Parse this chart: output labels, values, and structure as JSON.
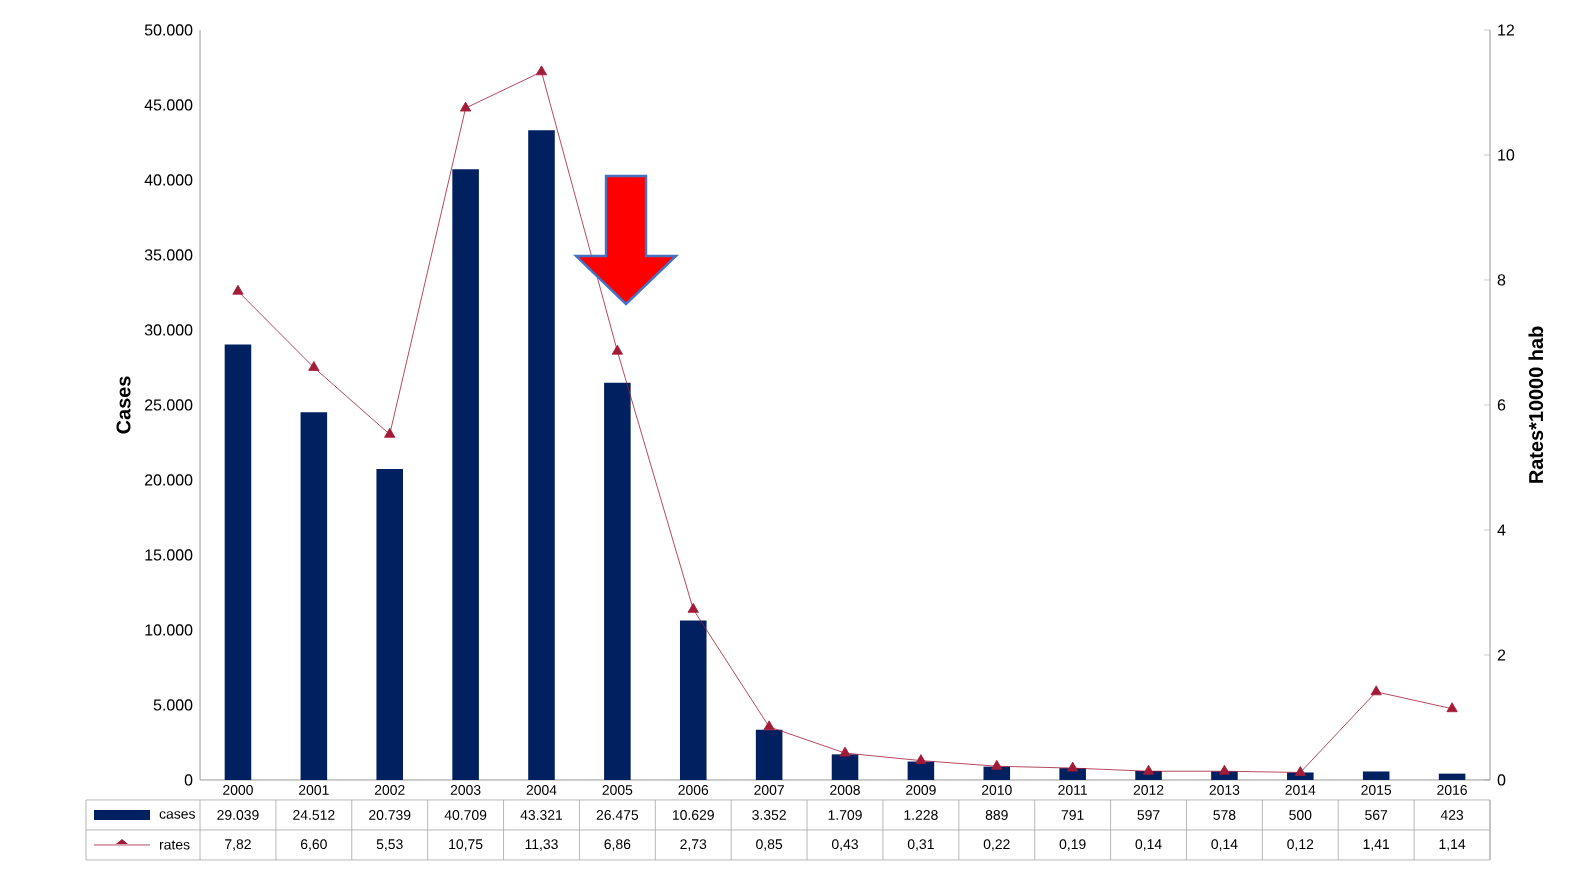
{
  "chart_data": {
    "type": "bar",
    "ylabel": "Cases",
    "y2label": "Rates*10000 hab",
    "categories": [
      "2000",
      "2001",
      "2002",
      "2003",
      "2004",
      "2005",
      "2006",
      "2007",
      "2008",
      "2009",
      "2010",
      "2011",
      "2012",
      "2013",
      "2014",
      "2015",
      "2016"
    ],
    "series": [
      {
        "name": "cases",
        "color": "#002060",
        "values": [
          29039,
          24512,
          20739,
          40709,
          43321,
          26475,
          10629,
          3352,
          1709,
          1228,
          889,
          791,
          597,
          578,
          500,
          567,
          423
        ],
        "value_labels": [
          "29.039",
          "24.512",
          "20.739",
          "40.709",
          "43.321",
          "26.475",
          "10.629",
          "3.352",
          "1.709",
          "1.228",
          "889",
          "791",
          "597",
          "578",
          "500",
          "567",
          "423"
        ]
      },
      {
        "name": "rates",
        "type": "line",
        "axis": "y2",
        "color": "#a31c37",
        "marker": "triangle",
        "values": [
          7.82,
          6.6,
          5.53,
          10.75,
          11.33,
          6.86,
          2.73,
          0.85,
          0.43,
          0.31,
          0.22,
          0.19,
          0.14,
          0.14,
          0.12,
          1.41,
          1.14
        ],
        "value_labels": [
          "7,82",
          "6,60",
          "5,53",
          "10,75",
          "11,33",
          "6,86",
          "2,73",
          "0,85",
          "0,43",
          "0,31",
          "0,22",
          "0,19",
          "0,14",
          "0,14",
          "0,12",
          "1,41",
          "1,14"
        ]
      }
    ],
    "ylim": [
      0,
      50000
    ],
    "yticks": [
      {
        "value": 0,
        "label": "0"
      },
      {
        "value": 5000,
        "label": "5.000"
      },
      {
        "value": 10000,
        "label": "10.000"
      },
      {
        "value": 15000,
        "label": "15.000"
      },
      {
        "value": 20000,
        "label": "20.000"
      },
      {
        "value": 25000,
        "label": "25.000"
      },
      {
        "value": 30000,
        "label": "30.000"
      },
      {
        "value": 35000,
        "label": "35.000"
      },
      {
        "value": 40000,
        "label": "40.000"
      },
      {
        "value": 45000,
        "label": "45.000"
      },
      {
        "value": 50000,
        "label": "50.000"
      }
    ],
    "y2lim": [
      0,
      12
    ],
    "y2ticks": [
      0,
      2,
      4,
      6,
      8,
      10,
      12
    ],
    "legend": "bottom",
    "grid": false
  }
}
